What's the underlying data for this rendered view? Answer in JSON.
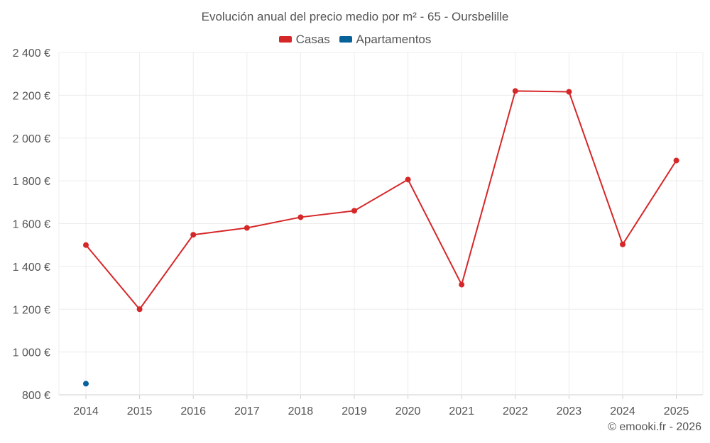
{
  "chart_data": {
    "type": "line",
    "title": "Evolución anual del precio medio por m² - 65 - Oursbelille",
    "xlabel": "",
    "ylabel": "",
    "categories": [
      "2014",
      "2015",
      "2016",
      "2017",
      "2018",
      "2019",
      "2020",
      "2021",
      "2022",
      "2023",
      "2024",
      "2025"
    ],
    "ylim": [
      800,
      2400
    ],
    "yticks": [
      800,
      1000,
      1200,
      1400,
      1600,
      1800,
      2000,
      2200,
      2400
    ],
    "ytick_labels": [
      "800 €",
      "1 000 €",
      "1 200 €",
      "1 400 €",
      "1 600 €",
      "1 800 €",
      "2 000 €",
      "2 200 €",
      "2 400 €"
    ],
    "grid": true,
    "legend_position": "top-center",
    "series": [
      {
        "name": "Casas",
        "color": "#d62728",
        "values": [
          1500,
          1200,
          1548,
          1580,
          1630,
          1660,
          1806,
          1315,
          2220,
          2216,
          1503,
          1895
        ]
      },
      {
        "name": "Apartamentos",
        "color": "#08629a",
        "values": [
          852,
          null,
          null,
          null,
          null,
          null,
          null,
          null,
          null,
          null,
          null,
          null
        ]
      }
    ]
  },
  "credit": "© emooki.fr - 2026"
}
